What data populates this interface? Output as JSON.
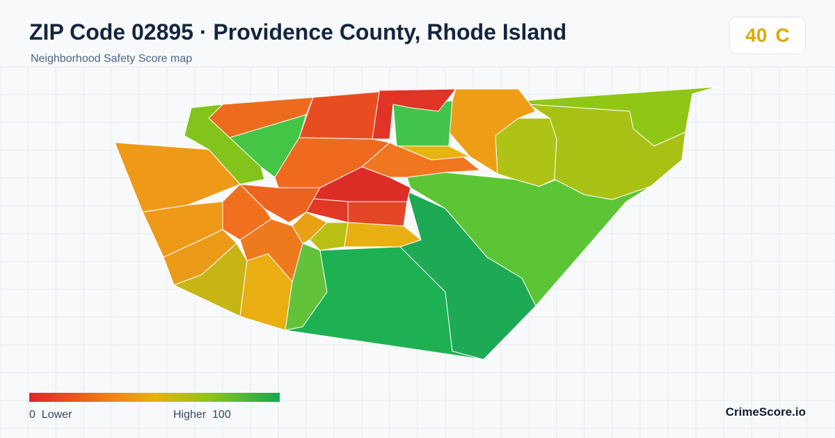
{
  "header": {
    "title": "ZIP Code 02895 · Providence County, Rhode Island",
    "subtitle": "Neighborhood Safety Score map"
  },
  "score": {
    "value": 40,
    "grade": "C"
  },
  "legend": {
    "min": 0,
    "min_label": "Lower",
    "max_label": "Higher",
    "max": 100
  },
  "brand": "CrimeScore.io"
}
